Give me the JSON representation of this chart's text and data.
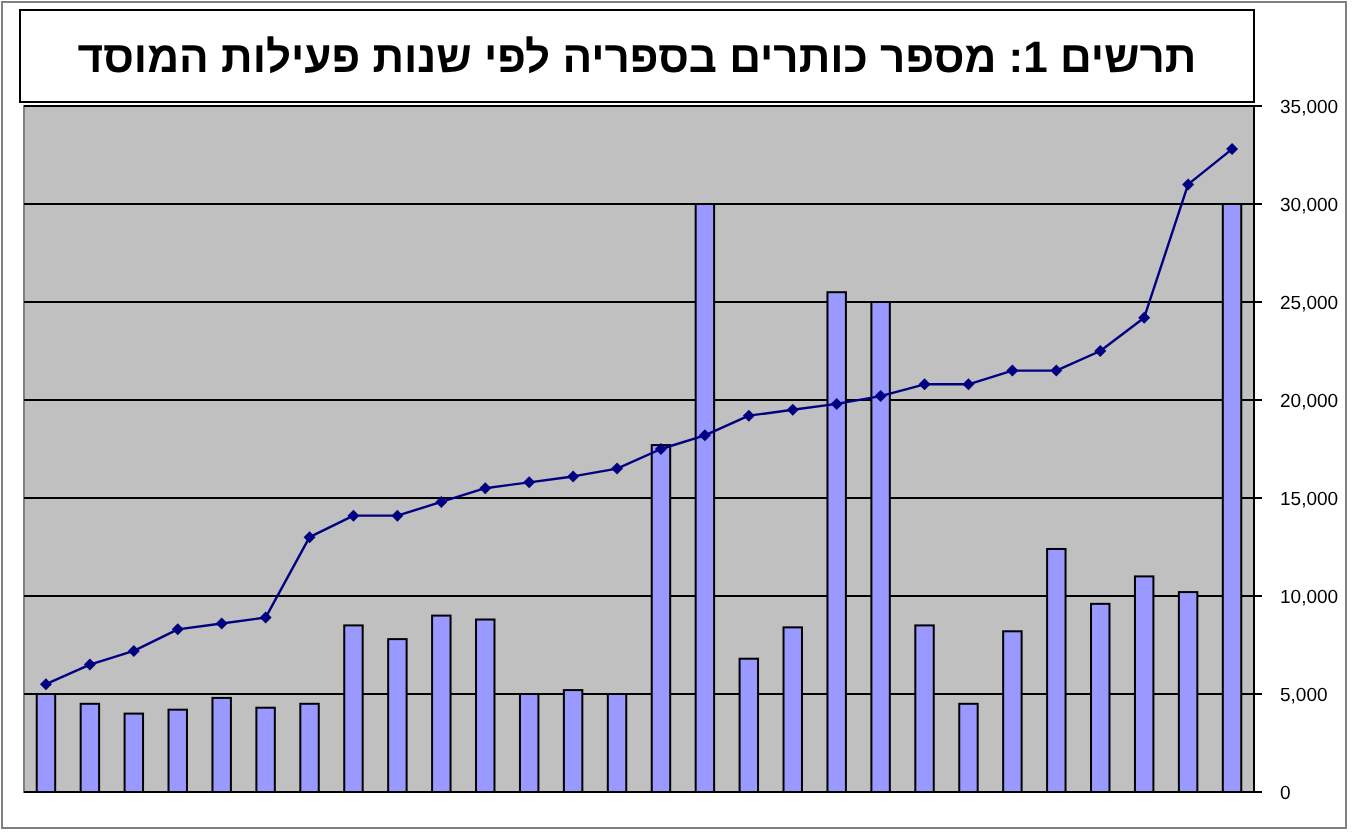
{
  "chart_data": {
    "type": "bar",
    "title": "תרשים 1: מספר כותרים בספריה לפי שנות פעילות המוסד",
    "categories": [
      null,
      null,
      null,
      null,
      null,
      null,
      null,
      null,
      null,
      null,
      null,
      null,
      null,
      null,
      null,
      null,
      null,
      null,
      null,
      null,
      null,
      null,
      null,
      null,
      null,
      null,
      null,
      null
    ],
    "series": [
      {
        "color": "#9999ff",
        "values": [
          5000,
          4500,
          4000,
          4200,
          4800,
          4300,
          4500,
          8500,
          7800,
          9000,
          8800,
          5000,
          5200,
          5000,
          17700,
          30000,
          6800,
          8400,
          25500,
          25000,
          8500,
          4500,
          8200,
          12400,
          9600,
          11000,
          10200,
          30000
        ]
      },
      {
        "type": "line",
        "color": "#000080",
        "values": [
          5500,
          6500,
          7200,
          8300,
          8600,
          8900,
          13000,
          14100,
          14100,
          14800,
          15500,
          15800,
          16100,
          16500,
          17500,
          18200,
          19200,
          19500,
          19800,
          20200,
          20800,
          20800,
          21500,
          21500,
          22500,
          24200,
          31000,
          32800
        ]
      }
    ],
    "ylim": [
      0,
      35000
    ],
    "yticks": [
      {
        "value": 0,
        "label": "0"
      },
      {
        "value": 5000,
        "label": "5,000"
      },
      {
        "value": 10000,
        "label": "10,000"
      },
      {
        "value": 15000,
        "label": "15,000"
      },
      {
        "value": 20000,
        "label": "20,000"
      },
      {
        "value": 25000,
        "label": "25,000"
      },
      {
        "value": 30000,
        "label": "30,000"
      },
      {
        "value": 35000,
        "label": "35,000"
      }
    ],
    "grid": "y",
    "marker": "diamond",
    "line_style": "solid"
  }
}
